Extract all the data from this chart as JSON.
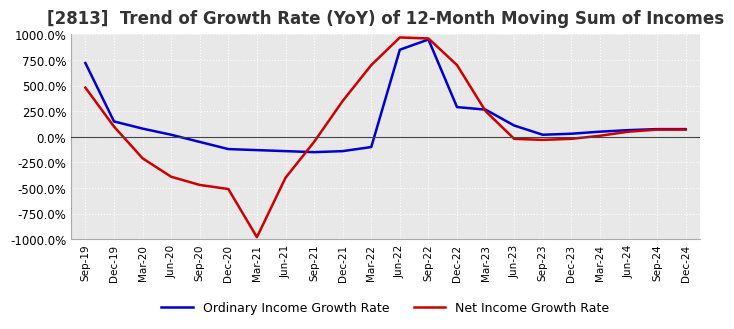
{
  "title": "[2813]  Trend of Growth Rate (YoY) of 12-Month Moving Sum of Incomes",
  "title_fontsize": 12,
  "ylim": [
    -1000,
    1000
  ],
  "yticks": [
    -1000,
    -750,
    -500,
    -250,
    0,
    250,
    500,
    750,
    1000
  ],
  "ytick_labels": [
    "-1000.0%",
    "-750.0%",
    "-500.0%",
    "-250.0%",
    "0.0%",
    "250.0%",
    "500.0%",
    "750.0%",
    "1000.0%"
  ],
  "background_color": "#ffffff",
  "plot_background_color": "#e8e8e8",
  "grid_color": "#ffffff",
  "ordinary_color": "#0000cc",
  "net_color": "#cc0000",
  "legend_labels": [
    "Ordinary Income Growth Rate",
    "Net Income Growth Rate"
  ],
  "x_labels": [
    "Sep-19",
    "Dec-19",
    "Mar-20",
    "Jun-20",
    "Sep-20",
    "Dec-20",
    "Mar-21",
    "Jun-21",
    "Sep-21",
    "Dec-21",
    "Mar-22",
    "Jun-22",
    "Sep-22",
    "Dec-22",
    "Mar-23",
    "Jun-23",
    "Sep-23",
    "Dec-23",
    "Mar-24",
    "Jun-24",
    "Sep-24",
    "Dec-24"
  ],
  "ordinary_data": [
    720,
    150,
    80,
    20,
    -50,
    -120,
    -130,
    -140,
    -150,
    -140,
    -100,
    850,
    950,
    290,
    265,
    110,
    20,
    30,
    50,
    65,
    75,
    75
  ],
  "net_data": [
    480,
    100,
    -210,
    -390,
    -470,
    -510,
    -980,
    -400,
    -50,
    350,
    700,
    970,
    960,
    700,
    250,
    -20,
    -30,
    -20,
    10,
    50,
    70,
    70
  ]
}
